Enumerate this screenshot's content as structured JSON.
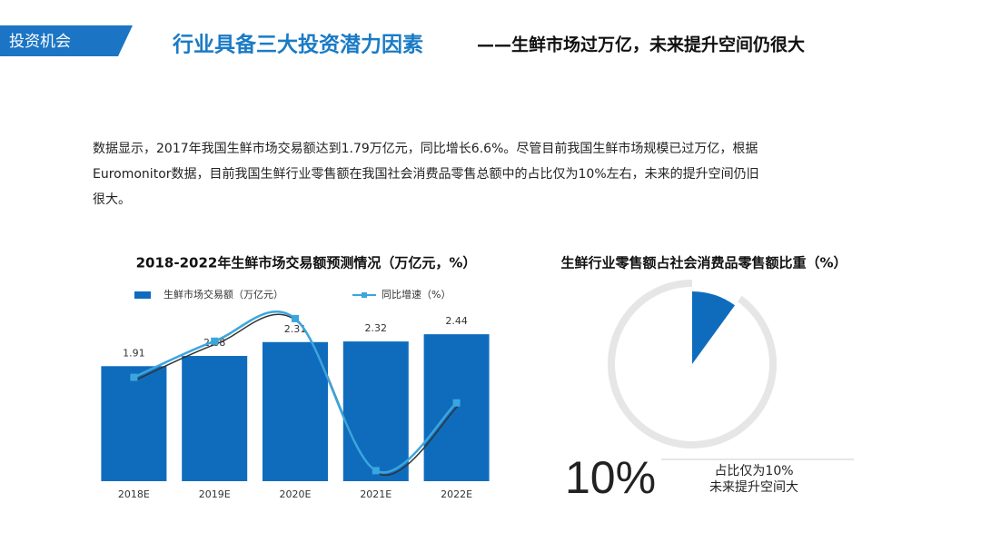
{
  "header": {
    "tab": "投资机会",
    "title": "行业具备三大投资潜力因素",
    "subtitle": "——生鲜市场过万亿，未来提升空间仍很大"
  },
  "paragraph": [
    "数据显示，2017年我国生鲜市场交易额达到1.79万亿元，同比增长6.6%。尽管目前我国生鲜市场规模已过万亿，根据",
    "Euromonitor数据，目前我国生鲜行业零售额在我国社会消费品零售总额中的占比仅为10%左右，未来的提升空间仍旧",
    "很大。"
  ],
  "chart_data": [
    {
      "type": "bar",
      "title": "2018-2022年生鲜市场交易额预测情况（万亿元，%）",
      "categories": [
        "2018E",
        "2019E",
        "2020E",
        "2021E",
        "2022E"
      ],
      "series": [
        {
          "name": "生鲜市场交易额（万亿元）",
          "color": "#0f6cbd",
          "values": [
            1.91,
            2.08,
            2.31,
            2.32,
            2.44
          ]
        },
        {
          "name": "同比增速（%）",
          "color": "#3aa6de",
          "axis": "y2",
          "values": [
            6.9,
            9.3,
            10.8,
            0.7,
            5.2
          ]
        }
      ],
      "ylim": [
        0,
        3
      ],
      "y2lim": [
        0,
        12
      ]
    },
    {
      "type": "pie",
      "title": "生鲜行业零售额占社会消费品零售额比重（%）",
      "values": [
        10,
        90
      ],
      "value_labels": [
        "10%",
        null
      ],
      "colors": [
        "#0f6cbd",
        "#e6e6e6"
      ],
      "annotation": [
        "占比仅为10%",
        "未来提升空间大"
      ]
    }
  ]
}
